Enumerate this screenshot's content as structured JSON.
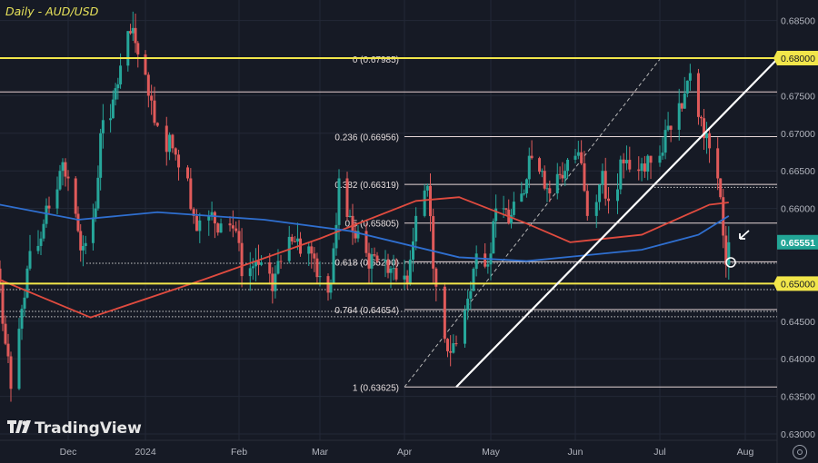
{
  "header": {
    "title": "Daily - AUD/USD"
  },
  "branding": {
    "logo_text": "TradingView"
  },
  "colors": {
    "background": "#161a25",
    "up": "#26a69a",
    "down": "#e05a5a",
    "ma_fast": "#e04b3f",
    "ma_slow": "#2f6fd0",
    "key_level": "#f2e64a",
    "trendline": "#ffffff",
    "last_price": "#22a596",
    "grid": "#232836"
  },
  "chart_data": {
    "type": "candlestick",
    "symbol": "AUD/USD",
    "timeframe": "Daily",
    "ylim": [
      0.6265,
      0.6885
    ],
    "y_ticks": [
      "0.68500",
      "0.68000",
      "0.67500",
      "0.67000",
      "0.66500",
      "0.66000",
      "0.65551",
      "0.65000",
      "0.64500",
      "0.64000",
      "0.63500",
      "0.63000"
    ],
    "y_tick_values": [
      0.685,
      0.68,
      0.675,
      0.67,
      0.665,
      0.66,
      0.65551,
      0.65,
      0.645,
      0.64,
      0.635,
      0.63
    ],
    "x_ticks": [
      {
        "label": "Dec",
        "date": "2023-12-01"
      },
      {
        "label": "2024",
        "date": "2024-01-01"
      },
      {
        "label": "Feb",
        "date": "2024-02-01"
      },
      {
        "label": "Mar",
        "date": "2024-03-01"
      },
      {
        "label": "Apr",
        "date": "2024-04-01"
      },
      {
        "label": "May",
        "date": "2024-05-01"
      },
      {
        "label": "Jun",
        "date": "2024-06-03"
      },
      {
        "label": "Jul",
        "date": "2024-07-01"
      },
      {
        "label": "Aug",
        "date": "2024-08-01"
      }
    ],
    "closes": [
      [
        "2023-11-06",
        0.65
      ],
      [
        "2023-11-08",
        0.642
      ],
      [
        "2023-11-10",
        0.636
      ],
      [
        "2023-11-13",
        0.644
      ],
      [
        "2023-11-16",
        0.652
      ],
      [
        "2023-11-21",
        0.656
      ],
      [
        "2023-11-24",
        0.66
      ],
      [
        "2023-11-28",
        0.665
      ],
      [
        "2023-12-01",
        0.664
      ],
      [
        "2023-12-05",
        0.657
      ],
      [
        "2023-12-07",
        0.655
      ],
      [
        "2023-12-12",
        0.66
      ],
      [
        "2023-12-14",
        0.67
      ],
      [
        "2023-12-18",
        0.672
      ],
      [
        "2023-12-20",
        0.676
      ],
      [
        "2023-12-22",
        0.679
      ],
      [
        "2023-12-27",
        0.684
      ],
      [
        "2023-12-28",
        0.682
      ],
      [
        "2024-01-02",
        0.675
      ],
      [
        "2024-01-05",
        0.671
      ],
      [
        "2024-01-10",
        0.668
      ],
      [
        "2024-01-15",
        0.664
      ],
      [
        "2024-01-18",
        0.657
      ],
      [
        "2024-01-22",
        0.659
      ],
      [
        "2024-01-26",
        0.658
      ],
      [
        "2024-01-31",
        0.657
      ],
      [
        "2024-02-02",
        0.651
      ],
      [
        "2024-02-07",
        0.653
      ],
      [
        "2024-02-13",
        0.649
      ],
      [
        "2024-02-16",
        0.653
      ],
      [
        "2024-02-22",
        0.656
      ],
      [
        "2024-02-27",
        0.654
      ],
      [
        "2024-03-01",
        0.651
      ],
      [
        "2024-03-05",
        0.65
      ],
      [
        "2024-03-08",
        0.664
      ],
      [
        "2024-03-12",
        0.659
      ],
      [
        "2024-03-15",
        0.657
      ],
      [
        "2024-03-19",
        0.652
      ],
      [
        "2024-03-22",
        0.653
      ],
      [
        "2024-03-27",
        0.652
      ],
      [
        "2024-04-02",
        0.65
      ],
      [
        "2024-04-05",
        0.659
      ],
      [
        "2024-04-09",
        0.663
      ],
      [
        "2024-04-11",
        0.652
      ],
      [
        "2024-04-16",
        0.641
      ],
      [
        "2024-04-19",
        0.642
      ],
      [
        "2024-04-23",
        0.648
      ],
      [
        "2024-04-26",
        0.654
      ],
      [
        "2024-05-01",
        0.654
      ],
      [
        "2024-05-03",
        0.66
      ],
      [
        "2024-05-08",
        0.658
      ],
      [
        "2024-05-14",
        0.662
      ],
      [
        "2024-05-16",
        0.667
      ],
      [
        "2024-05-21",
        0.665
      ],
      [
        "2024-05-24",
        0.662
      ],
      [
        "2024-05-29",
        0.664
      ],
      [
        "2024-06-03",
        0.667
      ],
      [
        "2024-06-05",
        0.666
      ],
      [
        "2024-06-07",
        0.659
      ],
      [
        "2024-06-12",
        0.665
      ],
      [
        "2024-06-14",
        0.661
      ],
      [
        "2024-06-19",
        0.666
      ],
      [
        "2024-06-24",
        0.665
      ],
      [
        "2024-06-27",
        0.667
      ],
      [
        "2024-07-01",
        0.667
      ],
      [
        "2024-07-04",
        0.671
      ],
      [
        "2024-07-08",
        0.674
      ],
      [
        "2024-07-11",
        0.677
      ],
      [
        "2024-07-12",
        0.678
      ],
      [
        "2024-07-16",
        0.672
      ],
      [
        "2024-07-18",
        0.67
      ],
      [
        "2024-07-19",
        0.668
      ],
      [
        "2024-07-22",
        0.664
      ],
      [
        "2024-07-23",
        0.6615
      ],
      [
        "2024-07-25",
        0.6525
      ],
      [
        "2024-07-26",
        0.6555
      ]
    ],
    "ma_fast": [
      [
        "2023-11-06",
        0.6505
      ],
      [
        "2023-12-10",
        0.6455
      ],
      [
        "2024-01-20",
        0.6505
      ],
      [
        "2024-03-01",
        0.656
      ],
      [
        "2024-04-05",
        0.661
      ],
      [
        "2024-04-20",
        0.6615
      ],
      [
        "2024-05-15",
        0.658
      ],
      [
        "2024-06-01",
        0.6555
      ],
      [
        "2024-06-25",
        0.6565
      ],
      [
        "2024-07-19",
        0.6605
      ],
      [
        "2024-07-26",
        0.6608
      ]
    ],
    "ma_slow": [
      [
        "2023-11-06",
        0.6605
      ],
      [
        "2023-12-05",
        0.6585
      ],
      [
        "2024-01-05",
        0.6595
      ],
      [
        "2024-02-10",
        0.6585
      ],
      [
        "2024-03-12",
        0.657
      ],
      [
        "2024-04-20",
        0.6535
      ],
      [
        "2024-05-15",
        0.653
      ],
      [
        "2024-06-25",
        0.6545
      ],
      [
        "2024-07-15",
        0.6565
      ],
      [
        "2024-07-26",
        0.659
      ]
    ],
    "key_levels": [
      0.68,
      0.65
    ],
    "horizontal_lines": [
      0.6755,
      0.6628,
      0.6527,
      0.6492,
      0.6463,
      0.6456
    ],
    "fibonacci": {
      "levels": [
        {
          "label": "0 (0.67985)",
          "value": 0.67985
        },
        {
          "label": "0.236 (0.66956)",
          "value": 0.66956
        },
        {
          "label": "0.382 (0.66319)",
          "value": 0.66319
        },
        {
          "label": "0.5 (0.65805)",
          "value": 0.65805
        },
        {
          "label": "0.618 (0.65290)",
          "value": 0.6529
        },
        {
          "label": "0.764 (0.64654)",
          "value": 0.64654
        },
        {
          "label": "1 (0.63625)",
          "value": 0.63625
        }
      ],
      "from": [
        "2024-04-01",
        0.63625
      ],
      "to": [
        "2024-07-01",
        0.67985
      ]
    },
    "trendline": {
      "from": [
        "2024-04-19",
        0.63625
      ],
      "to": [
        "2024-08-12",
        0.67985
      ]
    },
    "last_price": "0.65551",
    "last_price_value": 0.65551
  }
}
